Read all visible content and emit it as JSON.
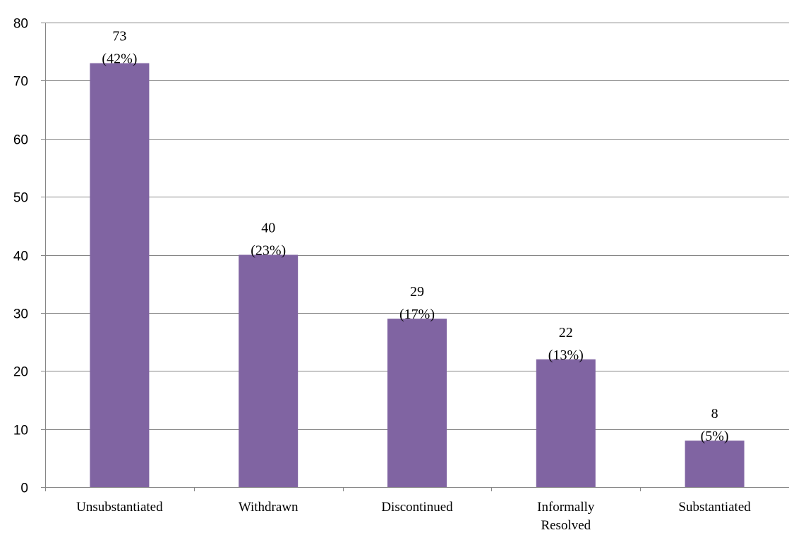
{
  "chart_data": {
    "type": "bar",
    "categories": [
      [
        "Unsubstantiated"
      ],
      [
        "Withdrawn"
      ],
      [
        "Discontinued"
      ],
      [
        "Informally",
        "Resolved"
      ],
      [
        "Substantiated"
      ]
    ],
    "values": [
      73,
      40,
      29,
      22,
      8
    ],
    "data_labels": [
      [
        "73",
        "(42%)"
      ],
      [
        "40",
        "(23%)"
      ],
      [
        "29",
        "(17%)"
      ],
      [
        "22",
        "(13%)"
      ],
      [
        "8",
        "(5%)"
      ]
    ],
    "yticks": [
      "0",
      "10",
      "20",
      "30",
      "40",
      "50",
      "60",
      "70",
      "80"
    ],
    "ylim": [
      0,
      80
    ],
    "grid": true,
    "colors": {
      "bar": "#8064A2",
      "grid": "#868686",
      "axis": "#868686"
    }
  }
}
